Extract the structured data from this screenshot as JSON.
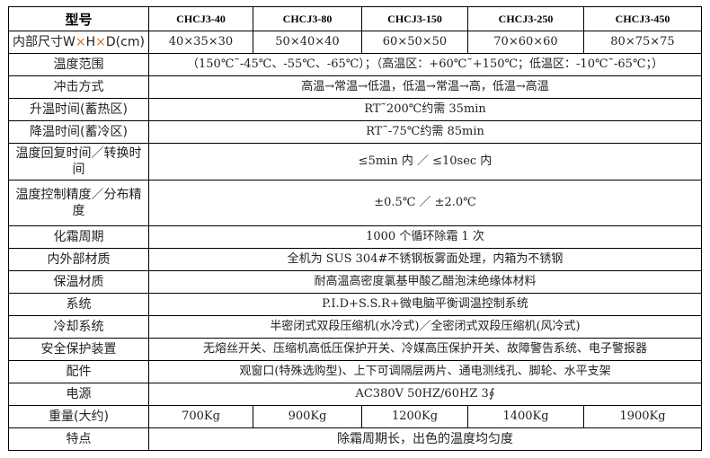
{
  "header": {
    "label": "型号",
    "models": [
      "CHCJ3-40",
      "CHCJ3-80",
      "CHCJ3-150",
      "CHCJ3-250",
      "CHCJ3-450"
    ]
  },
  "size": {
    "label_a": "内部尺寸W",
    "x1": "×",
    "label_b": "H",
    "x2": "×",
    "label_c": "D(cm)",
    "values": [
      "40×35×30",
      "50×40×40",
      "60×50×50",
      "70×60×60",
      "80×75×75"
    ]
  },
  "rows": [
    {
      "label": "温度范围",
      "value": "（150℃˜-45℃、-55℃、-65℃）；（高温区：+60℃˜+150℃；低温区：-10℃˜-65℃；）"
    },
    {
      "label": "冲击方式",
      "value": "高温→常温→低温，低温→常温→高，低温→高温"
    },
    {
      "label": "升温时间(蓄热区)",
      "value": "RT˜200℃约需 35min"
    },
    {
      "label": "降温时间(蓄冷区)",
      "value": "RT˜-75℃约需 85min"
    },
    {
      "label": "温度回复时间／转换时间",
      "value": "≤5min 内 ／ ≤10sec 内"
    },
    {
      "label": "温度控制精度／分布精度",
      "value": "±0.5℃ ／ ±2.0℃"
    },
    {
      "label": "化霜周期",
      "value": "1000 个循环除霜 1 次"
    },
    {
      "label": "内外部材质",
      "value": "全机为 SUS 304#不锈钢板雾面处理，内箱为不锈钢"
    },
    {
      "label": "保温材质",
      "value": "耐高温高密度氯基甲酸乙醋泡沫绝缘体材料"
    },
    {
      "label": "系统",
      "value": "P.I.D+S.S.R+微电脑平衡调温控制系统"
    },
    {
      "label": "冷却系统",
      "value": "半密闭式双段压缩机(水冷式)／全密闭式双段压缩机(风冷式)"
    },
    {
      "label": "安全保护装置",
      "value": "无熔丝开关、压缩机高低压保护开关、冷媒高压保护开关、故障警告系统、电子警报器"
    },
    {
      "label": "配件",
      "value": "观窗口(特殊选购型)、上下可调隔层两片、通电测线孔、脚轮、水平支架"
    },
    {
      "label": "电源",
      "value": "AC380V 50HZ/60HZ 3∮"
    }
  ],
  "weight": {
    "label": "重量(大约)",
    "values": [
      "700Kg",
      "900Kg",
      "1200Kg",
      "1400Kg",
      "1900Kg"
    ]
  },
  "feature": {
    "label": "特点",
    "value": "除霜周期长，出色的温度均匀度"
  }
}
